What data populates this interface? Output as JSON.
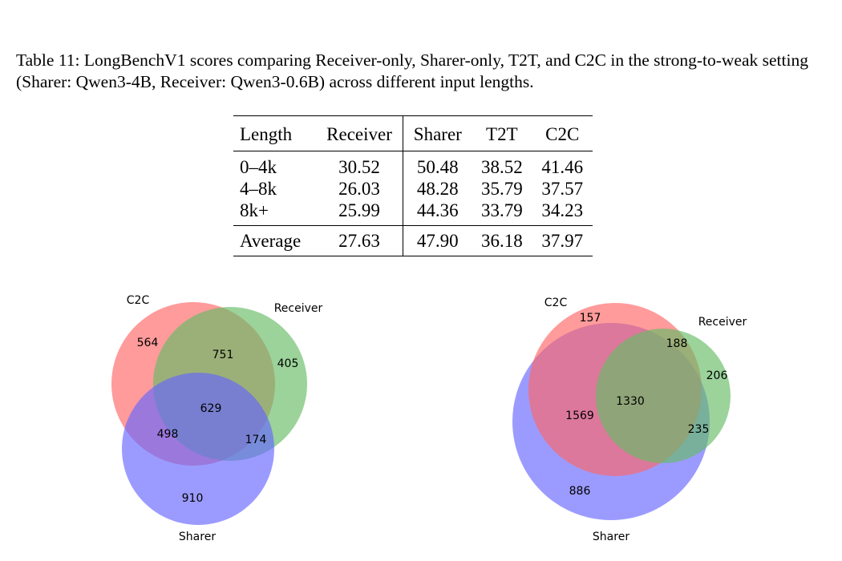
{
  "caption": "Table 11: LongBenchV1 scores comparing Receiver-only, Sharer-only, T2T, and C2C in the strong-to-weak setting (Sharer: Qwen3-4B, Receiver: Qwen3-0.6B) across different input lengths.",
  "table": {
    "headers": [
      "Length",
      "Receiver",
      "Sharer",
      "T2T",
      "C2C"
    ],
    "rows": [
      [
        "0–4k",
        "30.52",
        "50.48",
        "38.52",
        "41.46"
      ],
      [
        "4–8k",
        "26.03",
        "48.28",
        "35.79",
        "37.57"
      ],
      [
        "8k+",
        "25.99",
        "44.36",
        "33.79",
        "34.23"
      ]
    ],
    "average": [
      "Average",
      "27.63",
      "47.90",
      "36.18",
      "37.97"
    ]
  },
  "venn_left": {
    "sets": {
      "c2c": "C2C",
      "receiver": "Receiver",
      "sharer": "Sharer"
    },
    "regions": {
      "c2c_only": "564",
      "c2c_receiver": "751",
      "receiver_only": "405",
      "all_three": "629",
      "c2c_sharer": "498",
      "receiver_sharer": "174",
      "sharer_only": "910"
    },
    "colors": {
      "c2c": "#ff6666",
      "receiver": "#66bb66",
      "sharer": "#6666ff"
    }
  },
  "venn_right": {
    "sets": {
      "c2c": "C2C",
      "receiver": "Receiver",
      "sharer": "Sharer"
    },
    "regions": {
      "c2c_only": "157",
      "c2c_receiver": "188",
      "receiver_only": "206",
      "all_three": "1330",
      "c2c_sharer": "1569",
      "receiver_sharer": "235",
      "sharer_only": "886"
    },
    "colors": {
      "c2c": "#ff6666",
      "receiver": "#66bb66",
      "sharer": "#6666ff"
    }
  }
}
